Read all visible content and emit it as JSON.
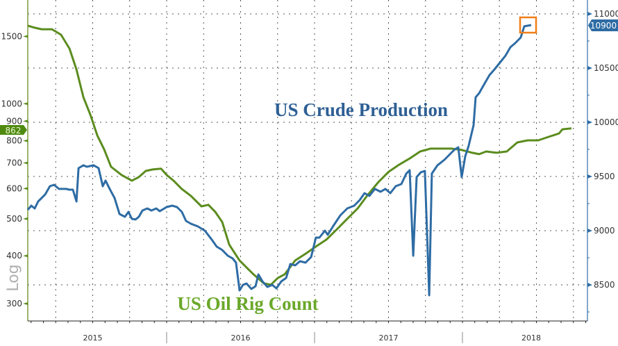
{
  "chart_data": {
    "type": "line",
    "title": "",
    "xlabel": "",
    "x_tick_labels": [
      "2015",
      "2016",
      "2017",
      "2018"
    ],
    "xlim": [
      2015.0,
      2018.79
    ],
    "left_axis": {
      "label": "Log",
      "scale": "log",
      "ylim": [
        270,
        1900
      ],
      "ticks": [
        300,
        400,
        500,
        600,
        700,
        800,
        900,
        1000,
        1500
      ],
      "tick_labels": [
        "300",
        "400",
        "500",
        "600",
        "700",
        "800",
        "900",
        "1000",
        "1500"
      ]
    },
    "right_axis": {
      "scale": "linear",
      "ylim": [
        8200,
        11130
      ],
      "ticks": [
        8500,
        9000,
        9500,
        10000,
        10500,
        11000
      ],
      "tick_labels": [
        "8500",
        "9000",
        "9500",
        "10000",
        "10500",
        "11000"
      ]
    },
    "grid": true,
    "series": [
      {
        "name": "US Oil Rig Count",
        "axis": "left",
        "color": "#5b8c1e",
        "last_value_label": "862",
        "x": [
          2015.061,
          2015.108,
          2015.155,
          2015.225,
          2015.286,
          2015.343,
          2015.39,
          2015.437,
          2015.484,
          2015.531,
          2015.577,
          2015.624,
          2015.695,
          2015.765,
          2015.812,
          2015.859,
          2015.906,
          2015.962,
          2016.0,
          2016.047,
          2016.103,
          2016.164,
          2016.235,
          2016.282,
          2016.329,
          2016.376,
          2016.423,
          2016.493,
          2016.54,
          2016.587,
          2016.657,
          2016.704,
          2016.751,
          2016.798,
          2016.869,
          2016.939,
          2017.009,
          2017.08,
          2017.15,
          2017.221,
          2017.291,
          2017.362,
          2017.432,
          2017.502,
          2017.573,
          2017.643,
          2017.714,
          2017.784,
          2017.854,
          2017.925,
          2017.995,
          2018.066,
          2018.113,
          2018.16,
          2018.23,
          2018.3,
          2018.371,
          2018.441,
          2018.512,
          2018.582,
          2018.653,
          2018.676,
          2018.737
        ],
        "y": [
          1600,
          1580,
          1566,
          1566,
          1515,
          1393,
          1229,
          1040,
          936,
          826,
          760,
          684,
          651,
          629,
          643,
          667,
          673,
          676,
          651,
          629,
          598,
          574,
          539,
          544,
          521,
          490,
          428,
          389,
          373,
          358,
          339,
          336,
          350,
          358,
          389,
          405,
          423,
          441,
          469,
          500,
          532,
          579,
          624,
          664,
          693,
          719,
          750,
          763,
          763,
          763,
          757,
          744,
          738,
          750,
          744,
          750,
          792,
          802,
          802,
          819,
          836,
          857,
          862
        ]
      },
      {
        "name": "US Crude Production",
        "axis": "right",
        "color": "#2e6ca4",
        "last_value_label": "10900",
        "x": [
          2015.061,
          2015.085,
          2015.108,
          2015.131,
          2015.178,
          2015.211,
          2015.239,
          2015.272,
          2015.319,
          2015.343,
          2015.366,
          2015.39,
          2015.404,
          2015.437,
          2015.46,
          2015.507,
          2015.54,
          2015.568,
          2015.587,
          2015.615,
          2015.648,
          2015.681,
          2015.718,
          2015.742,
          2015.765,
          2015.789,
          2015.812,
          2015.836,
          2015.869,
          2015.897,
          2015.93,
          2015.953,
          2016.0,
          2016.038,
          2016.07,
          2016.103,
          2016.131,
          2016.164,
          2016.211,
          2016.258,
          2016.305,
          2016.338,
          2016.376,
          2016.413,
          2016.446,
          2016.469,
          2016.493,
          2016.516,
          2016.54,
          2016.573,
          2016.601,
          2016.62,
          2016.648,
          2016.681,
          2016.714,
          2016.742,
          2016.775,
          2016.808,
          2016.836,
          2016.869,
          2016.901,
          2016.939,
          2016.977,
          2017.009,
          2017.033,
          2017.07,
          2017.089,
          2017.127,
          2017.174,
          2017.221,
          2017.268,
          2017.305,
          2017.338,
          2017.371,
          2017.408,
          2017.446,
          2017.479,
          2017.512,
          2017.549,
          2017.587,
          2017.62,
          2017.643,
          2017.667,
          2017.69,
          2017.718,
          2017.746,
          2017.775,
          2017.793,
          2017.831,
          2017.878,
          2017.915,
          2017.948,
          2017.972,
          2017.995,
          2018.019,
          2018.042,
          2018.075,
          2018.089,
          2018.113,
          2018.15,
          2018.183,
          2018.216,
          2018.254,
          2018.291,
          2018.324,
          2018.357,
          2018.394,
          2018.418,
          2018.465
        ],
        "y": [
          9192,
          9231,
          9205,
          9269,
          9333,
          9410,
          9423,
          9385,
          9385,
          9378,
          9378,
          9269,
          9577,
          9603,
          9590,
          9603,
          9577,
          9410,
          9462,
          9385,
          9301,
          9154,
          9128,
          9173,
          9109,
          9103,
          9128,
          9186,
          9205,
          9186,
          9205,
          9180,
          9218,
          9231,
          9218,
          9173,
          9090,
          9064,
          9039,
          9000,
          8917,
          8853,
          8821,
          8769,
          8744,
          8705,
          8449,
          8500,
          8513,
          8462,
          8487,
          8596,
          8532,
          8481,
          8500,
          8468,
          8532,
          8564,
          8692,
          8680,
          8718,
          8705,
          8757,
          8936,
          8936,
          9000,
          8962,
          9045,
          9141,
          9205,
          9231,
          9282,
          9346,
          9321,
          9385,
          9359,
          9385,
          9346,
          9410,
          9430,
          9526,
          9558,
          8769,
          9494,
          9538,
          9551,
          8404,
          9526,
          9603,
          9654,
          9705,
          9750,
          9769,
          9494,
          9686,
          9782,
          9974,
          10231,
          10269,
          10359,
          10436,
          10487,
          10551,
          10615,
          10692,
          10731,
          10782,
          10885,
          10897
        ]
      }
    ],
    "annotations": [
      "US Crude Production",
      "US Oil Rig Count"
    ],
    "highlight": "last crude production point boxed in orange"
  }
}
